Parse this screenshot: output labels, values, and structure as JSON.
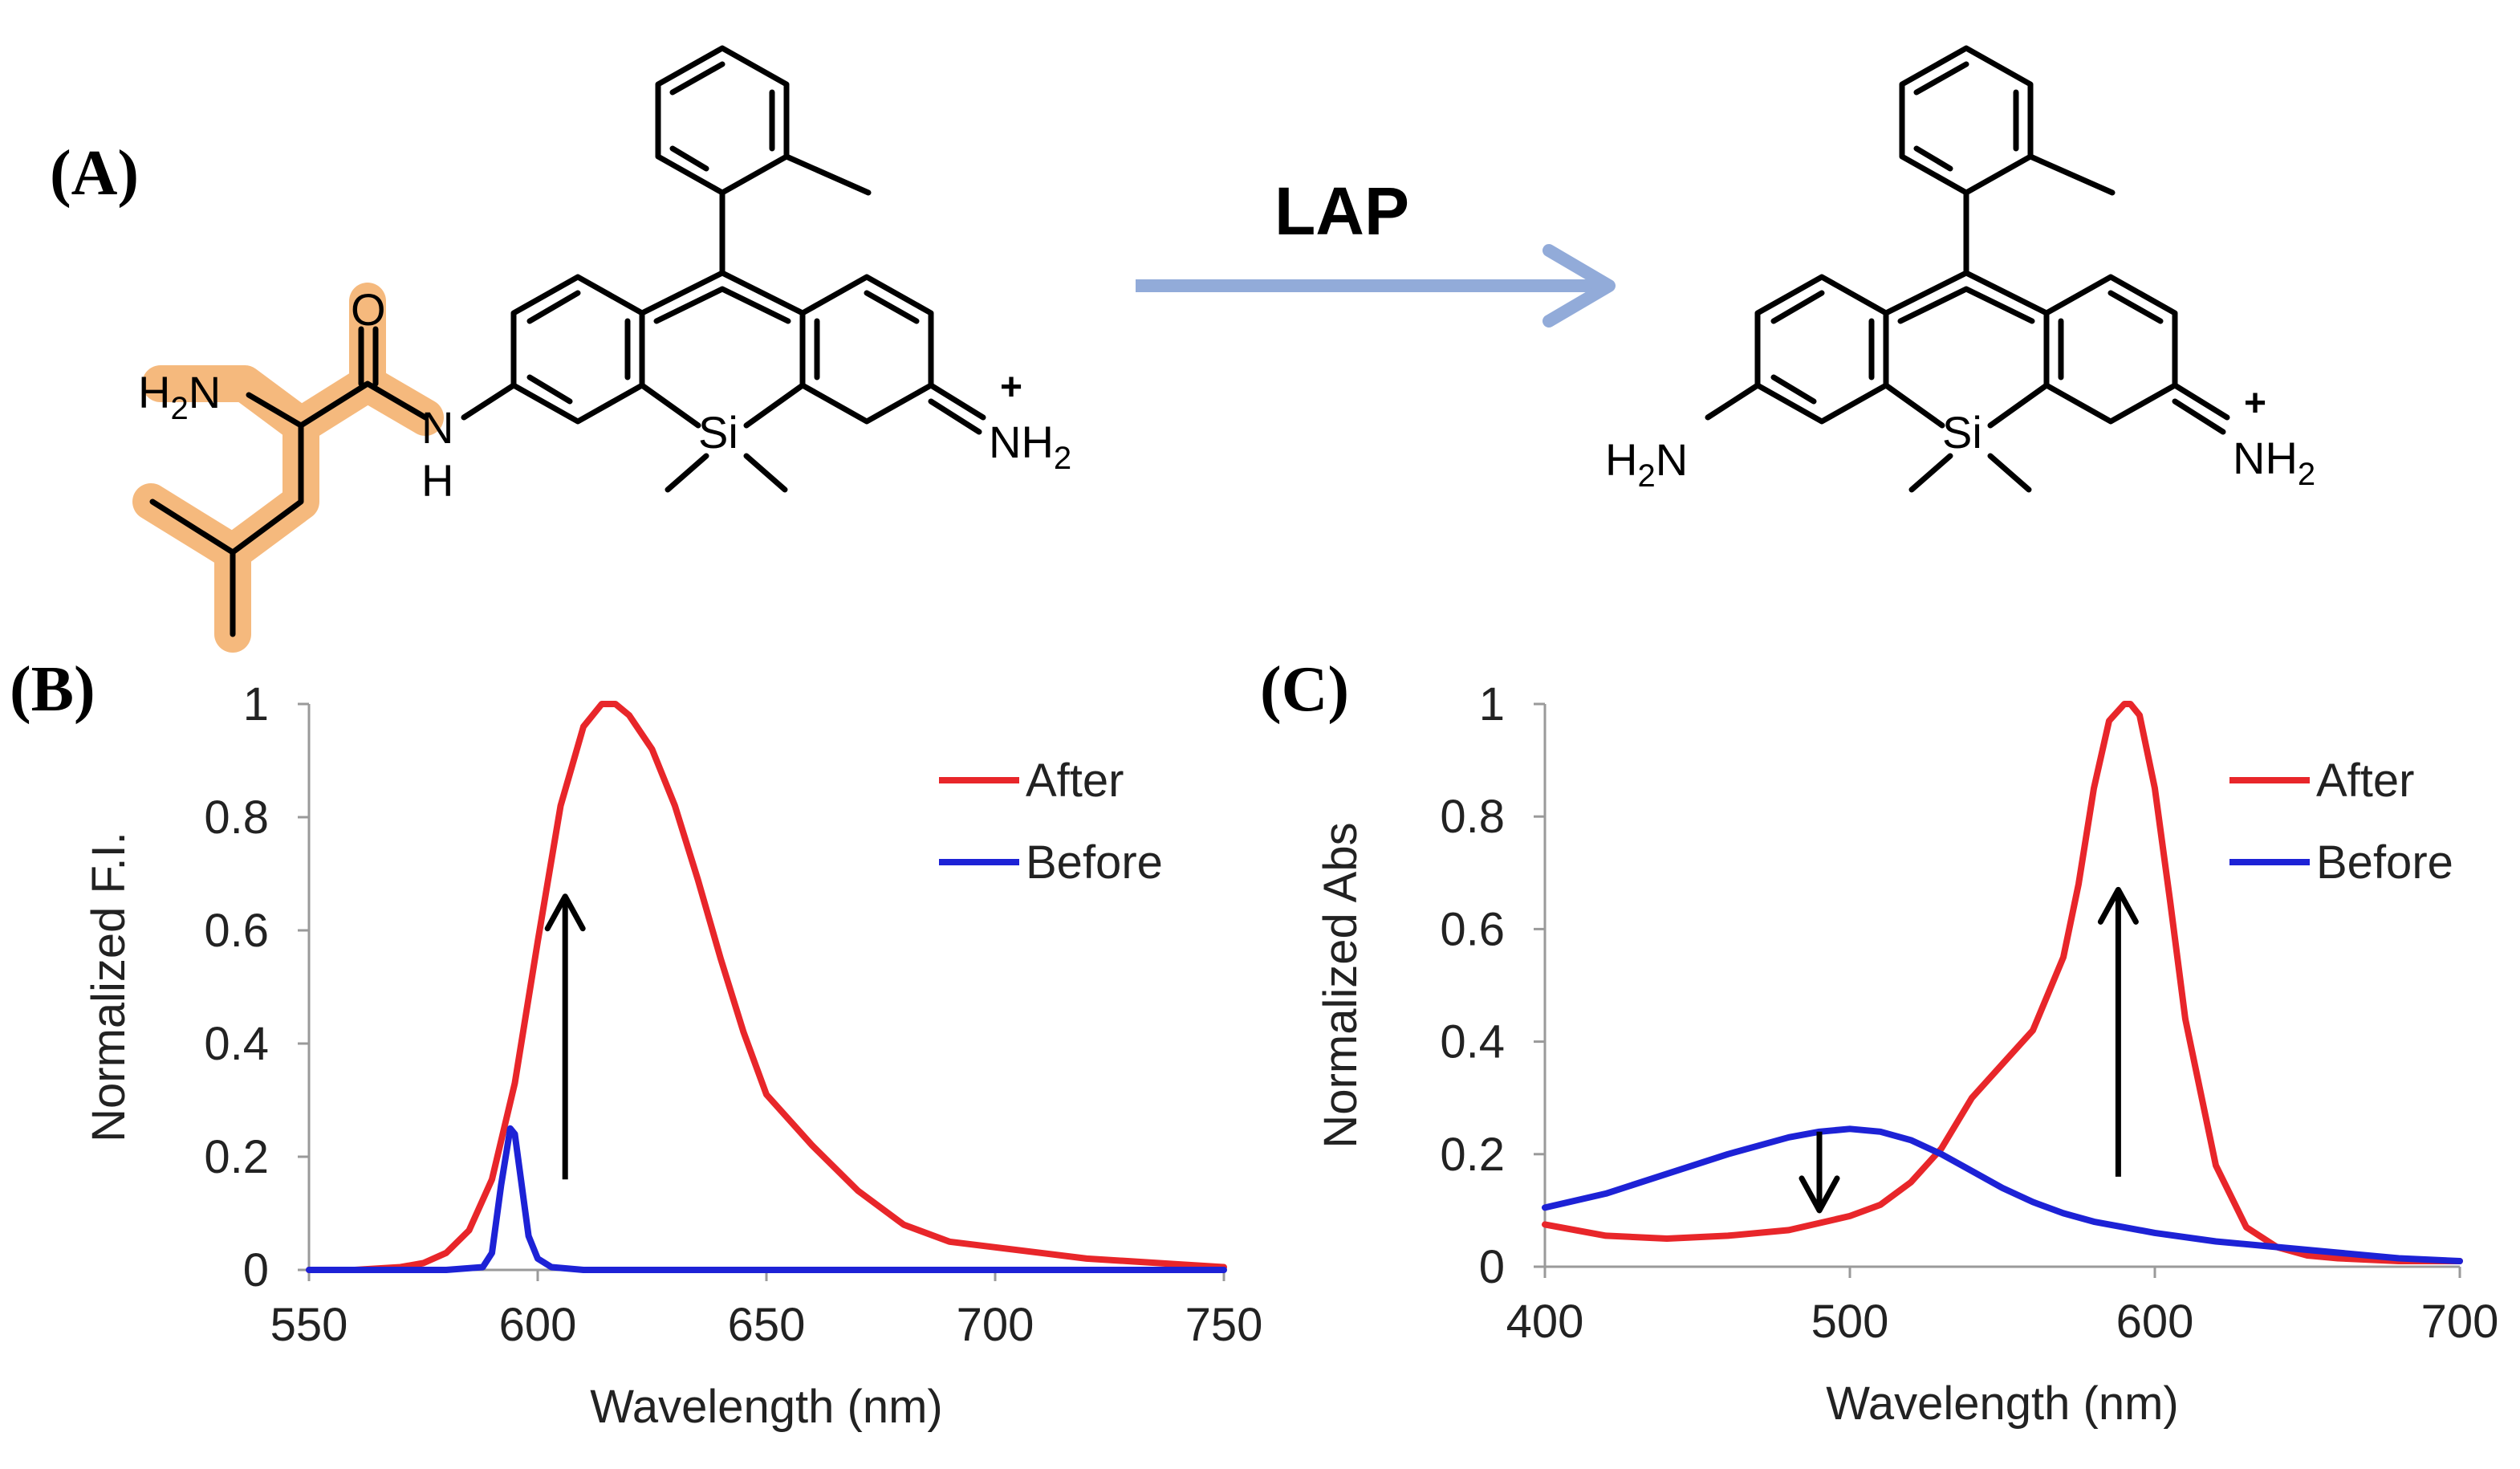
{
  "figure": {
    "panel_a_label": "(A)",
    "panel_b_label": "(B)",
    "panel_c_label": "(C)",
    "reagent_label": "LAP",
    "arrow_color": "#92abd9",
    "highlight_color": "#f5b97d"
  },
  "molecules": {
    "substrate": {
      "amine_label": "H",
      "amine_sub": "2",
      "amine_n": "N",
      "carbonyl_o": "O",
      "amide_n": "N",
      "amide_h": "H",
      "silicon": "Si",
      "iminium_n": "NH",
      "iminium_sub": "2",
      "charge": "+"
    },
    "product": {
      "amine_label": "H",
      "amine_sub": "2",
      "amine_n": "N",
      "silicon": "Si",
      "iminium_n": "NH",
      "iminium_sub": "2",
      "charge": "+"
    }
  },
  "chart_data": [
    {
      "type": "line",
      "panel": "(B)",
      "xlabel": "Wavelength (nm)",
      "ylabel": "Normalized F.I.",
      "xlim": [
        550,
        750
      ],
      "ylim": [
        0,
        1
      ],
      "x_ticks": [
        "550",
        "600",
        "650",
        "700",
        "750"
      ],
      "y_ticks": [
        "0",
        "0.2",
        "0.4",
        "0.6",
        "0.8",
        "1"
      ],
      "legend_position": "top-right",
      "annotation": "up arrow at ~606 nm from 0.16 to 0.66",
      "series": [
        {
          "name": "After",
          "color": "#e8262a",
          "x": [
            550,
            560,
            570,
            575,
            580,
            585,
            590,
            595,
            600,
            605,
            610,
            614,
            617,
            620,
            625,
            630,
            635,
            640,
            645,
            650,
            660,
            670,
            680,
            690,
            700,
            710,
            720,
            730,
            740,
            750
          ],
          "y": [
            0.0,
            0.0,
            0.005,
            0.012,
            0.03,
            0.07,
            0.16,
            0.33,
            0.58,
            0.82,
            0.96,
            1.0,
            1.0,
            0.98,
            0.92,
            0.82,
            0.69,
            0.55,
            0.42,
            0.31,
            0.22,
            0.14,
            0.08,
            0.05,
            0.04,
            0.03,
            0.02,
            0.015,
            0.01,
            0.005
          ]
        },
        {
          "name": "Before",
          "color": "#1d22d6",
          "x": [
            550,
            580,
            588,
            590,
            592,
            594,
            595,
            596,
            598,
            600,
            603,
            610,
            650,
            700,
            750
          ],
          "y": [
            0.0,
            0.0,
            0.005,
            0.03,
            0.15,
            0.25,
            0.24,
            0.18,
            0.06,
            0.02,
            0.005,
            0.0,
            0.0,
            0.0,
            0.0
          ]
        }
      ]
    },
    {
      "type": "line",
      "panel": "(C)",
      "xlabel": "Wavelength (nm)",
      "ylabel": "Normalized Abs",
      "xlim": [
        400,
        700
      ],
      "ylim": [
        0,
        1
      ],
      "x_ticks": [
        "400",
        "500",
        "600",
        "700"
      ],
      "y_ticks": [
        "0",
        "0.2",
        "0.4",
        "0.6",
        "0.8",
        "1"
      ],
      "legend_position": "top-right",
      "annotation": "down arrow at ~490 nm from 0.24 to 0.1; up arrow at ~588 nm from 0.16 to 0.67",
      "series": [
        {
          "name": "After",
          "color": "#e8262a",
          "x": [
            400,
            420,
            440,
            460,
            480,
            500,
            510,
            520,
            530,
            540,
            550,
            555,
            560,
            570,
            575,
            580,
            585,
            590,
            592,
            595,
            600,
            605,
            610,
            620,
            630,
            640,
            650,
            660,
            680,
            700
          ],
          "y": [
            0.075,
            0.055,
            0.05,
            0.055,
            0.065,
            0.09,
            0.11,
            0.15,
            0.21,
            0.3,
            0.36,
            0.39,
            0.42,
            0.55,
            0.68,
            0.85,
            0.97,
            1.0,
            1.0,
            0.98,
            0.85,
            0.65,
            0.44,
            0.18,
            0.07,
            0.035,
            0.02,
            0.015,
            0.01,
            0.01
          ]
        },
        {
          "name": "Before",
          "color": "#1d22d6",
          "x": [
            400,
            420,
            440,
            460,
            480,
            490,
            500,
            510,
            520,
            530,
            540,
            550,
            560,
            570,
            580,
            600,
            620,
            640,
            660,
            680,
            700
          ],
          "y": [
            0.105,
            0.13,
            0.165,
            0.2,
            0.23,
            0.24,
            0.245,
            0.24,
            0.225,
            0.2,
            0.17,
            0.14,
            0.115,
            0.095,
            0.08,
            0.06,
            0.045,
            0.035,
            0.025,
            0.015,
            0.01
          ]
        }
      ]
    }
  ]
}
